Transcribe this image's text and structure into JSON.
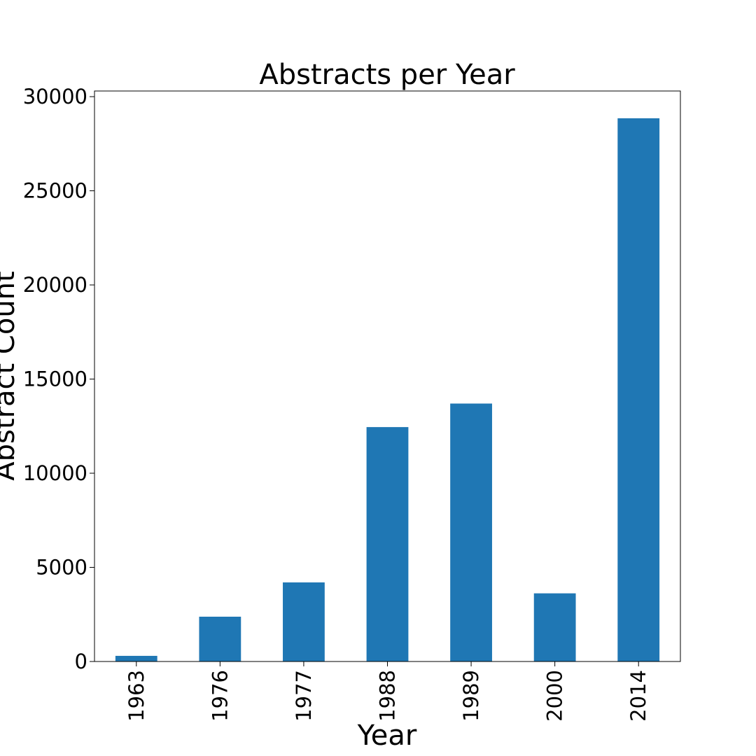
{
  "chart_data": {
    "type": "bar",
    "title": "Abstracts per Year",
    "xlabel": "Year",
    "ylabel": "Abstract Count",
    "categories": [
      "1963",
      "1976",
      "1977",
      "1988",
      "1989",
      "2000",
      "2014"
    ],
    "values": [
      300,
      2380,
      4200,
      12450,
      13700,
      3620,
      28850
    ],
    "ylim": [
      0,
      30300
    ],
    "yticks": [
      0,
      5000,
      10000,
      15000,
      20000,
      25000,
      30000
    ],
    "x_tick_rotation": "vertical",
    "grid": false,
    "legend": "none",
    "colors": {
      "bar": "#1f77b4",
      "axes": "#000000",
      "background": "#ffffff"
    }
  }
}
